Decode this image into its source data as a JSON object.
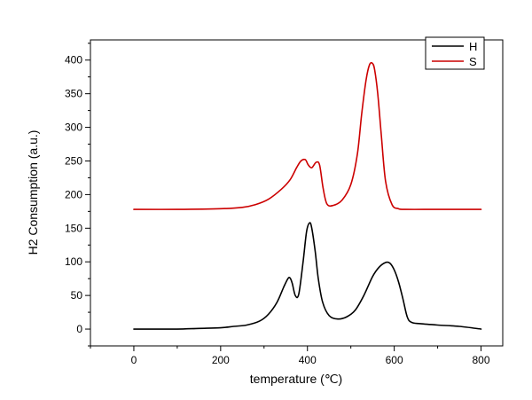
{
  "chart_data": {
    "type": "line",
    "title": "",
    "xlabel": "temperature (℃)",
    "ylabel": "H2 Consumption (a.u.)",
    "xlim": [
      -100,
      850
    ],
    "ylim": [
      -25,
      430
    ],
    "xticks": [
      0,
      200,
      400,
      600,
      800
    ],
    "yticks": [
      0,
      50,
      100,
      150,
      200,
      250,
      300,
      350,
      400
    ],
    "grid": false,
    "legend_position": "top-right",
    "series": [
      {
        "name": "H",
        "color": "#000000",
        "x": [
          0,
          50,
          100,
          150,
          200,
          230,
          260,
          290,
          310,
          330,
          345,
          355,
          360,
          365,
          372,
          380,
          390,
          398,
          405,
          410,
          418,
          425,
          435,
          450,
          470,
          490,
          510,
          530,
          550,
          565,
          580,
          590,
          600,
          610,
          620,
          630,
          640,
          660,
          700,
          750,
          800
        ],
        "y": [
          0,
          0,
          0,
          1,
          2,
          4,
          6,
          12,
          22,
          40,
          62,
          75,
          76,
          68,
          50,
          52,
          100,
          145,
          158,
          150,
          115,
          75,
          40,
          20,
          15,
          18,
          28,
          50,
          78,
          92,
          99,
          98,
          88,
          70,
          45,
          18,
          10,
          8,
          6,
          4,
          0
        ]
      },
      {
        "name": "S",
        "color": "#cc0000",
        "x": [
          0,
          100,
          200,
          250,
          280,
          310,
          340,
          360,
          375,
          385,
          395,
          402,
          410,
          420,
          428,
          436,
          445,
          460,
          480,
          500,
          515,
          525,
          535,
          543,
          550,
          555,
          562,
          570,
          580,
          595,
          610,
          625,
          700,
          800
        ],
        "y": [
          178,
          178,
          179,
          181,
          185,
          193,
          208,
          222,
          240,
          250,
          252,
          244,
          240,
          248,
          244,
          210,
          186,
          184,
          192,
          215,
          260,
          320,
          370,
          393,
          395,
          385,
          350,
          290,
          220,
          185,
          179,
          178,
          178,
          178
        ]
      }
    ]
  }
}
